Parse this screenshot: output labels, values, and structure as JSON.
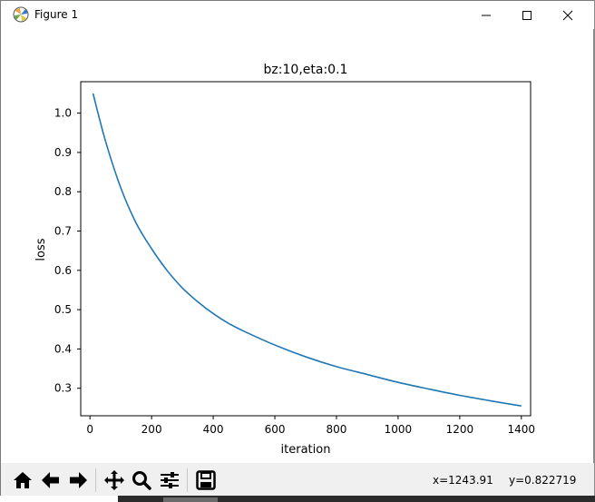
{
  "window": {
    "title": "Figure 1",
    "controls": {
      "minimize": "minimize",
      "maximize": "maximize",
      "close": "close"
    }
  },
  "chart_data": {
    "type": "line",
    "title": "bz:10,eta:0.1",
    "xlabel": "iteration",
    "ylabel": "loss",
    "xlim": [
      -30,
      1430
    ],
    "ylim": [
      0.23,
      1.08
    ],
    "xticks": [
      0,
      200,
      400,
      600,
      800,
      1000,
      1200,
      1400
    ],
    "yticks": [
      0.3,
      0.4,
      0.5,
      0.6,
      0.7,
      0.8,
      0.9,
      1.0
    ],
    "grid": false,
    "series": [
      {
        "color": "#1f77b4",
        "x": [
          10,
          50,
          100,
          150,
          200,
          250,
          300,
          350,
          400,
          450,
          500,
          600,
          700,
          800,
          900,
          1000,
          1100,
          1200,
          1300,
          1400
        ],
        "y": [
          1.05,
          0.93,
          0.81,
          0.72,
          0.655,
          0.6,
          0.555,
          0.52,
          0.49,
          0.465,
          0.445,
          0.41,
          0.38,
          0.355,
          0.335,
          0.315,
          0.298,
          0.282,
          0.268,
          0.255
        ]
      }
    ]
  },
  "toolbar": {
    "icons": [
      "home-icon",
      "back-arrow-icon",
      "forward-arrow-icon",
      "pan-icon",
      "zoom-icon",
      "subplots-icon",
      "save-icon"
    ],
    "coord_x": "x=1243.91",
    "coord_y": "y=0.822719"
  }
}
